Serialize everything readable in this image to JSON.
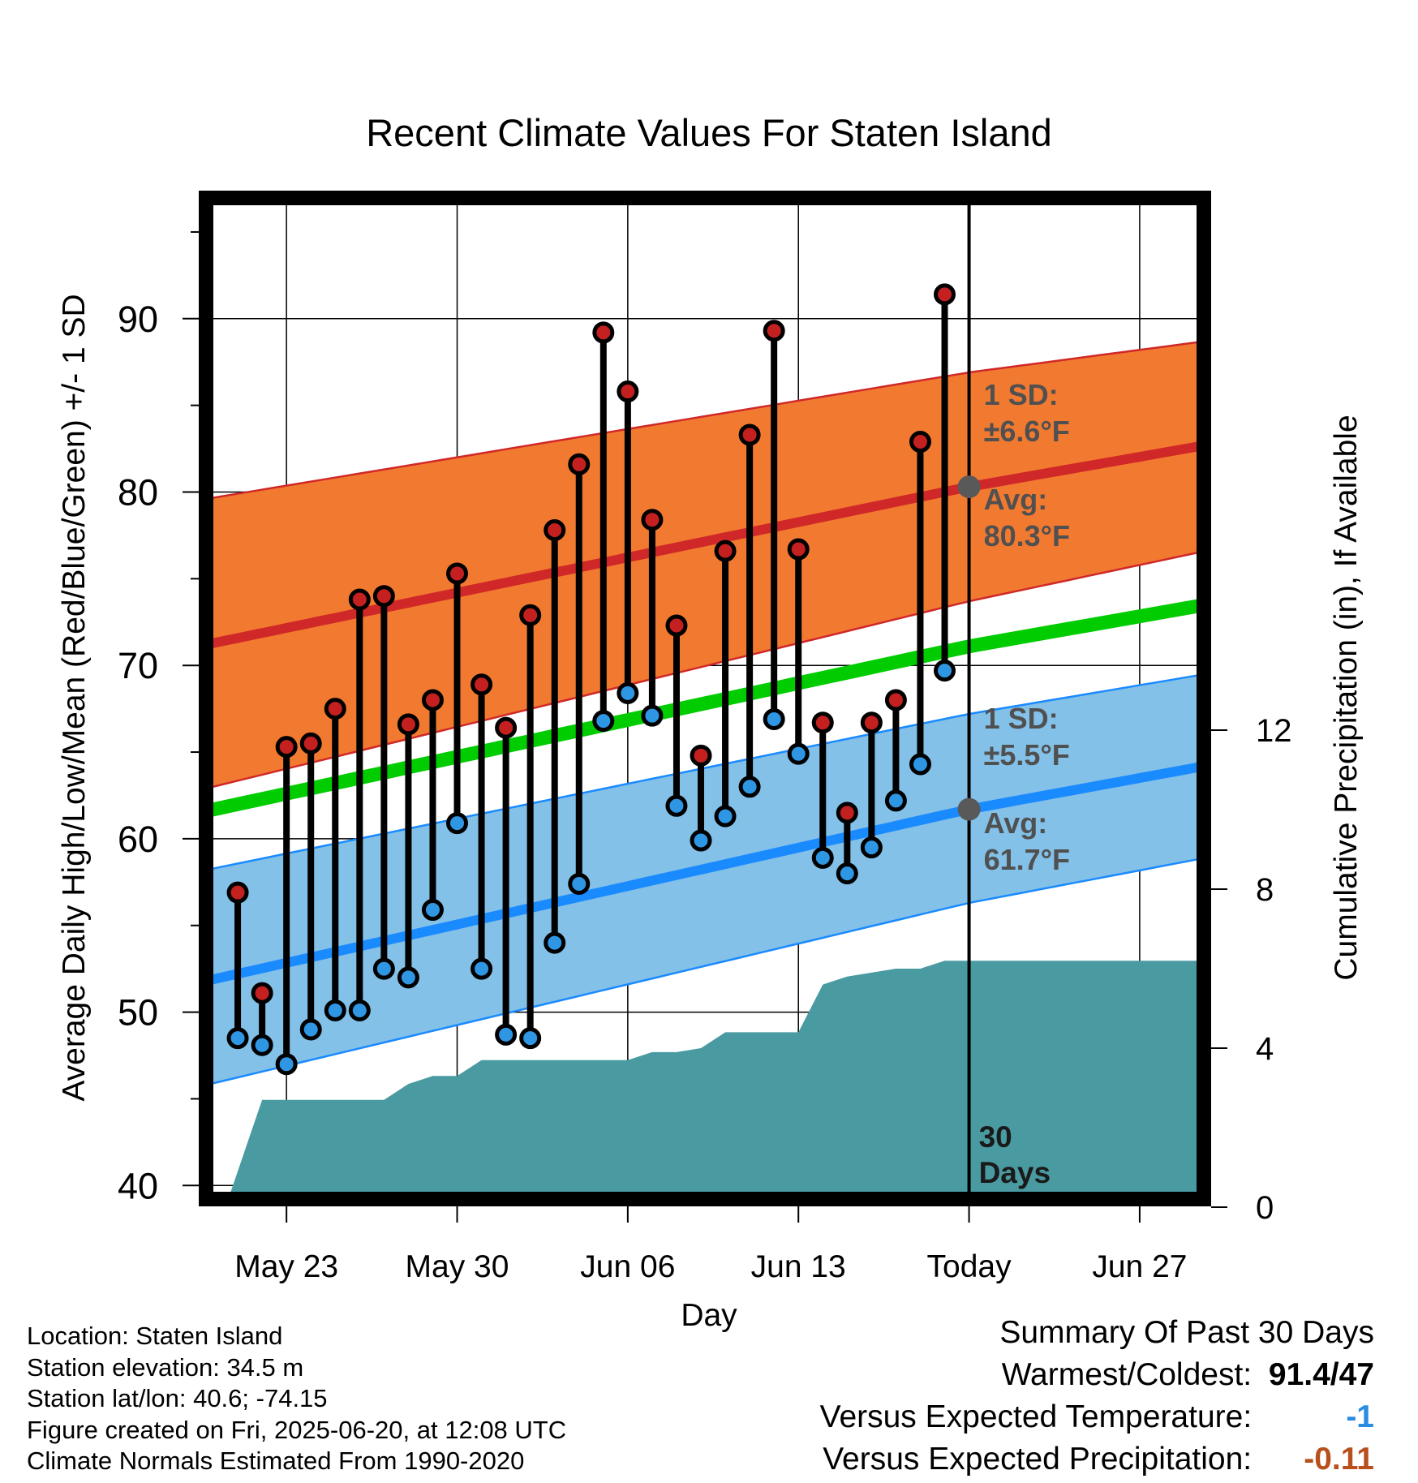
{
  "chart_data": {
    "type": "line",
    "title": "Recent Climate Values For Staten Island",
    "xlabel": "Day",
    "ylabel": "Average Daily High/Low/Mean (Red/Blue/Green) +/- 1 SD",
    "y2label": "Cumulative Precipitation (in), If Available",
    "ylim": [
      39,
      97
    ],
    "y2lim": [
      0,
      22.5
    ],
    "yticks": [
      40,
      50,
      60,
      70,
      80,
      90
    ],
    "y2ticks": [
      0,
      4,
      8,
      12
    ],
    "xlim": [
      20,
      51
    ],
    "xticks": [
      {
        "day": 23,
        "label": "May 23"
      },
      {
        "day": 30,
        "label": "May 30"
      },
      {
        "day": 37,
        "label": "Jun 06"
      },
      {
        "day": 44,
        "label": "Jun 13"
      },
      {
        "day": 51,
        "label": "Today"
      },
      {
        "day": 58,
        "label": "Jun 27"
      }
    ],
    "today_label": "30 Days",
    "normals": {
      "x": [
        19.7,
        51,
        60.7
      ],
      "high_mean": [
        71.2,
        80.3,
        82.7
      ],
      "high_sd_upper": [
        79.6,
        86.9,
        88.7
      ],
      "high_sd_lower": [
        62.9,
        73.7,
        76.6
      ],
      "mean": [
        61.6,
        71.1,
        73.5
      ],
      "low_mean": [
        51.8,
        61.7,
        64.2
      ],
      "low_sd_upper": [
        58.2,
        67.2,
        69.5
      ],
      "low_sd_lower": [
        45.8,
        56.3,
        58.9
      ]
    },
    "normal_labels": {
      "high_sd": "1 SD:",
      "high_sd_value": "±6.6°F",
      "high_avg": "Avg:",
      "high_avg_value": "80.3°F",
      "low_sd": "1 SD:",
      "low_sd_value": "±5.5°F",
      "low_avg": "Avg:",
      "low_avg_value": "61.7°F"
    },
    "days": [
      21,
      22,
      23,
      24,
      25,
      26,
      27,
      28,
      29,
      30,
      31,
      32,
      33,
      34,
      35,
      36,
      37,
      38,
      39,
      40,
      41,
      42,
      43,
      44,
      45,
      46,
      47,
      48,
      49,
      50
    ],
    "highs": [
      56.9,
      51.1,
      65.3,
      65.5,
      67.5,
      73.8,
      74.0,
      66.6,
      68.0,
      75.3,
      68.9,
      66.4,
      72.9,
      77.8,
      81.6,
      89.2,
      85.8,
      78.4,
      72.3,
      64.8,
      76.6,
      83.3,
      89.3,
      76.7,
      66.7,
      61.5,
      66.7,
      68.0,
      82.9,
      91.4
    ],
    "lows": [
      48.5,
      48.1,
      47.0,
      49.0,
      50.1,
      50.1,
      52.5,
      52.0,
      55.9,
      60.9,
      52.5,
      48.7,
      48.5,
      54.0,
      57.4,
      66.8,
      68.4,
      67.1,
      61.9,
      59.9,
      61.3,
      63.0,
      66.9,
      64.9,
      58.9,
      58.0,
      59.5,
      62.2,
      64.3,
      69.7
    ],
    "precip": {
      "x": [
        20,
        20.5,
        22,
        23,
        27,
        28,
        29,
        30,
        31,
        36,
        37,
        38,
        39,
        40,
        41,
        42,
        43,
        44,
        45,
        46,
        47,
        48,
        49,
        50,
        51,
        60.7
      ],
      "values": [
        0,
        0,
        2.7,
        2.7,
        2.7,
        3.1,
        3.3,
        3.3,
        3.7,
        3.7,
        3.7,
        3.9,
        3.9,
        4.0,
        4.4,
        4.4,
        4.4,
        4.4,
        5.6,
        5.8,
        5.9,
        6.0,
        6.0,
        6.2,
        6.2,
        6.2
      ]
    },
    "colors": {
      "high_band": "#f27a30",
      "high_line": "#d02828",
      "mean_line": "#00cc00",
      "low_band": "#83c1e8",
      "low_line": "#1a8aff",
      "precip": "#4a9aa2",
      "high_dot": "#c42020",
      "low_dot": "#2f96e4",
      "marker_gray": "#595959"
    }
  },
  "footer": {
    "location": "Location: Staten Island",
    "elevation": "Station elevation: 34.5 m",
    "latlon": "Station lat/lon: 40.6; -74.15",
    "created": "Figure created on Fri, 2025-06-20, at 12:08 UTC",
    "normals": "Climate Normals Estimated From 1990-2020"
  },
  "summary": {
    "title": "Summary Of Past 30 Days",
    "warmest_label": "Warmest/Coldest:",
    "warmest_value": "91.4/47",
    "temp_label": "Versus Expected Temperature:",
    "temp_value": "-1",
    "precip_label": "Versus Expected Precipitation:",
    "precip_value": "-0.11"
  }
}
